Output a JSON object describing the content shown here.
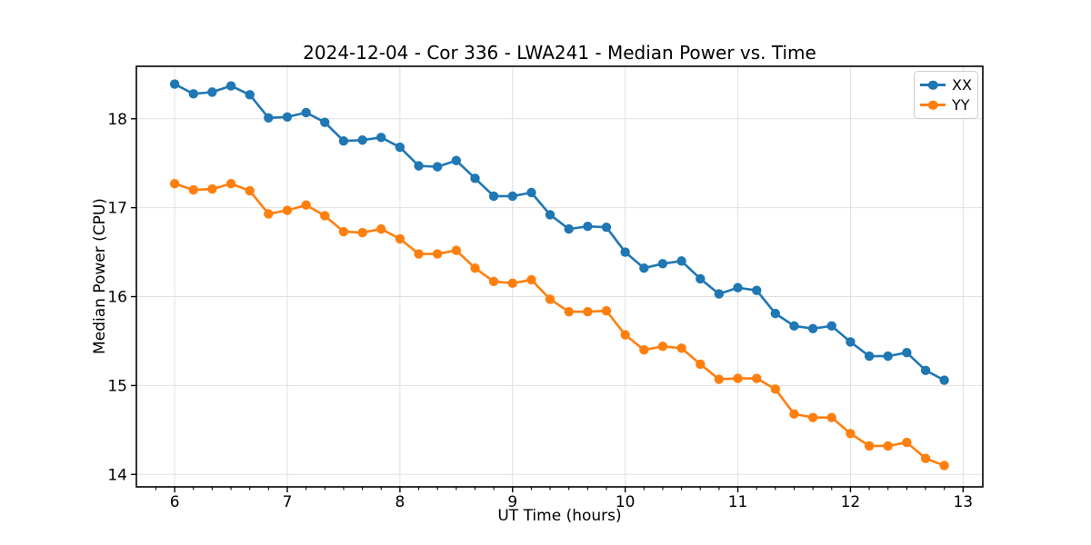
{
  "figure": {
    "background": "#ffffff",
    "text_color": "#000000",
    "frame_color": "#000000"
  },
  "chart_data": {
    "type": "line",
    "title": "2024-12-04 - Cor 336 - LWA241 - Median Power vs. Time",
    "xlabel": "UT Time (hours)",
    "ylabel": "Median Power (CPU)",
    "xlim": [
      5.66,
      13.175
    ],
    "ylim": [
      13.86,
      18.59
    ],
    "xticks": [
      6,
      7,
      8,
      9,
      10,
      11,
      12,
      13
    ],
    "yticks": [
      14,
      15,
      16,
      17,
      18
    ],
    "x_minor_step": 0.166667,
    "grid": true,
    "grid_color": "#e0e0e0",
    "legend_position": "upper right",
    "x": [
      6.0,
      6.167,
      6.333,
      6.5,
      6.667,
      6.833,
      7.0,
      7.167,
      7.333,
      7.5,
      7.667,
      7.833,
      8.0,
      8.167,
      8.333,
      8.5,
      8.667,
      8.833,
      9.0,
      9.167,
      9.333,
      9.5,
      9.667,
      9.833,
      10.0,
      10.167,
      10.333,
      10.5,
      10.667,
      10.833,
      11.0,
      11.167,
      11.333,
      11.5,
      11.667,
      11.833,
      12.0,
      12.167,
      12.333,
      12.5,
      12.667,
      12.833
    ],
    "series": [
      {
        "name": "XX",
        "color": "#1f77b4",
        "values": [
          18.39,
          18.28,
          18.3,
          18.37,
          18.27,
          18.01,
          18.02,
          18.07,
          17.96,
          17.75,
          17.76,
          17.79,
          17.68,
          17.47,
          17.46,
          17.53,
          17.33,
          17.13,
          17.13,
          17.17,
          16.92,
          16.76,
          16.79,
          16.78,
          16.5,
          16.32,
          16.37,
          16.4,
          16.2,
          16.03,
          16.1,
          16.07,
          15.81,
          15.67,
          15.64,
          15.67,
          15.49,
          15.33,
          15.33,
          15.37,
          15.17,
          15.06
        ]
      },
      {
        "name": "YY",
        "color": "#ff7f0e",
        "values": [
          17.27,
          17.2,
          17.21,
          17.27,
          17.19,
          16.93,
          16.97,
          17.03,
          16.91,
          16.73,
          16.72,
          16.76,
          16.65,
          16.48,
          16.48,
          16.52,
          16.32,
          16.17,
          16.15,
          16.19,
          15.97,
          15.83,
          15.83,
          15.84,
          15.57,
          15.4,
          15.44,
          15.42,
          15.24,
          15.07,
          15.08,
          15.08,
          14.96,
          14.68,
          14.64,
          14.64,
          14.46,
          14.32,
          14.32,
          14.36,
          14.18,
          14.1
        ]
      }
    ]
  }
}
